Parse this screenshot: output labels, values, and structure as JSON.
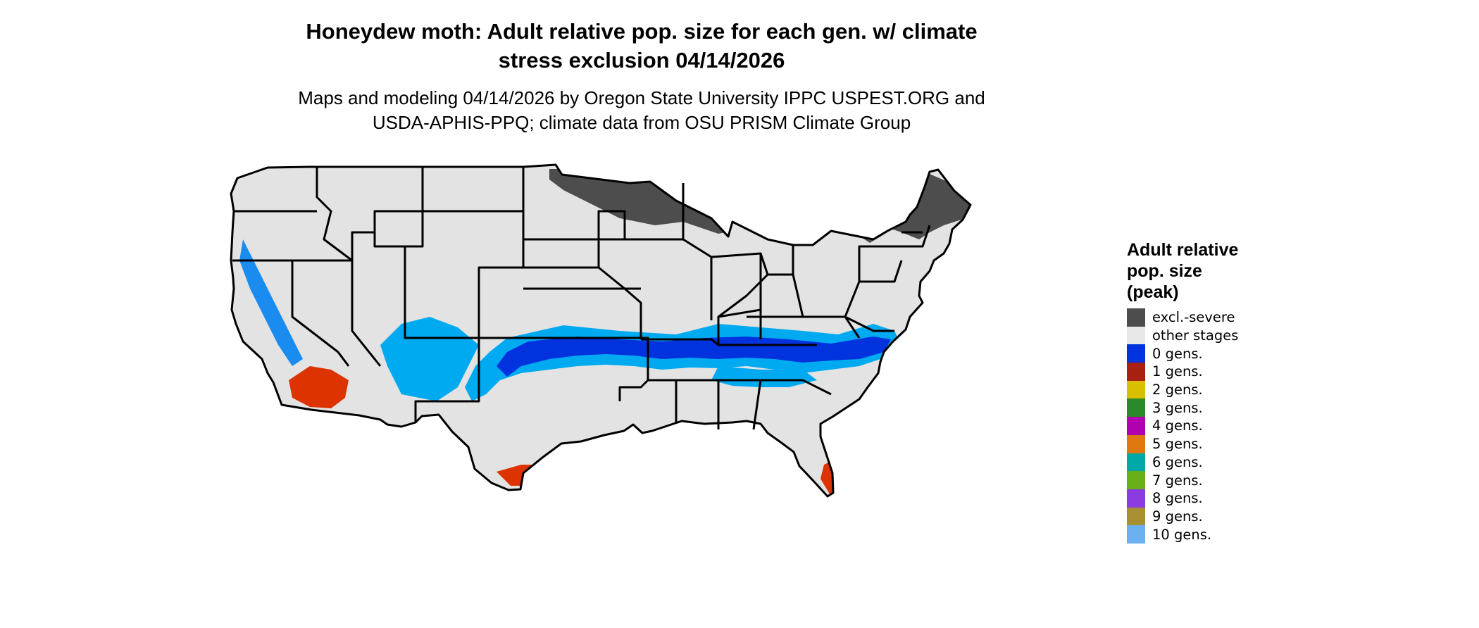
{
  "title": {
    "line1": "Honeydew moth: Adult relative pop. size for each gen. w/ climate",
    "line2": "stress exclusion 04/14/2026"
  },
  "subtitle": {
    "line1": "Maps and modeling 04/14/2026 by Oregon State University IPPC USPEST.ORG and",
    "line2": "USDA-APHIS-PPQ; climate data from OSU PRISM Climate Group"
  },
  "map": {
    "region": "Contiguous United States",
    "base_color": "#e3e3e3",
    "border_color": "#000000",
    "colors": {
      "excl_severe": "#4d4d4d",
      "gens_0": "#0033dd",
      "gens_0_light": "#1a8cf0",
      "gens_0_pale": "#00aaf0",
      "gens_1": "#dd3300"
    }
  },
  "legend": {
    "title_line1": "Adult relative",
    "title_line2": "pop. size",
    "title_line3": "(peak)",
    "items": [
      {
        "label": "excl.-severe",
        "color": "#4d4d4d"
      },
      {
        "label": "other stages",
        "color": "#e8e8e8"
      },
      {
        "label": "0 gens.",
        "color": "#0033dd"
      },
      {
        "label": "1 gens.",
        "color": "#a82010"
      },
      {
        "label": "2 gens.",
        "color": "#d8c000"
      },
      {
        "label": "3 gens.",
        "color": "#2a8a2a"
      },
      {
        "label": "4 gens.",
        "color": "#b000b0"
      },
      {
        "label": "5 gens.",
        "color": "#e07810"
      },
      {
        "label": "6 gens.",
        "color": "#00a8a8"
      },
      {
        "label": "7 gens.",
        "color": "#68b018"
      },
      {
        "label": "8 gens.",
        "color": "#8a3ce0"
      },
      {
        "label": "9 gens.",
        "color": "#a89030"
      },
      {
        "label": "10 gens.",
        "color": "#6cb0f0"
      }
    ]
  }
}
